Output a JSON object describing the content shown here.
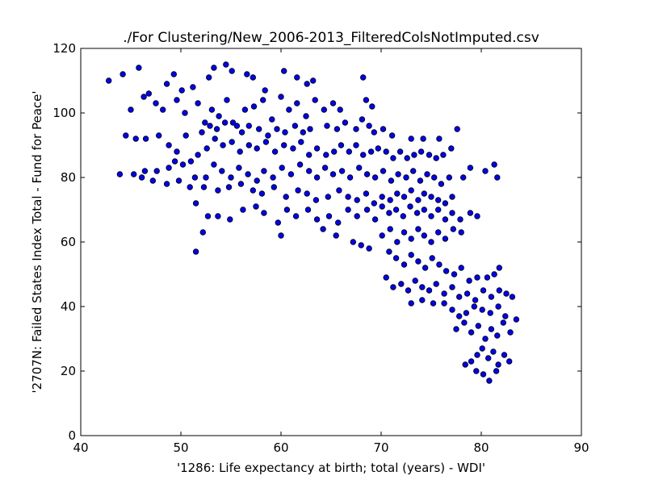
{
  "chart_data": {
    "type": "scatter",
    "title": "./For Clustering/New_2006-2013_FilteredColsNotImputed.csv",
    "xlabel": "'1286: Life expectancy at birth; total  (years) - WDI'",
    "ylabel": "'2707N: Failed States Index Total - Fund for Peace'",
    "xlim": [
      40,
      90
    ],
    "ylim": [
      0,
      120
    ],
    "xticks": [
      40,
      50,
      60,
      70,
      80,
      90
    ],
    "yticks": [
      0,
      20,
      40,
      60,
      80,
      100,
      120
    ],
    "grid": false,
    "marker_color": "#0000ff",
    "marker_edge": "#000000",
    "points": [
      [
        42.8,
        110
      ],
      [
        44.2,
        112
      ],
      [
        45.8,
        114
      ],
      [
        46.3,
        105
      ],
      [
        47.5,
        103
      ],
      [
        48.6,
        109
      ],
      [
        49.3,
        112
      ],
      [
        50.1,
        107
      ],
      [
        51.2,
        108
      ],
      [
        52.8,
        111
      ],
      [
        53.3,
        114
      ],
      [
        54.5,
        115
      ],
      [
        55.1,
        113
      ],
      [
        56.6,
        112
      ],
      [
        57.2,
        111
      ],
      [
        58.4,
        107
      ],
      [
        60.3,
        113
      ],
      [
        61.6,
        111
      ],
      [
        62.6,
        109
      ],
      [
        63.2,
        110
      ],
      [
        68.2,
        111
      ],
      [
        45.0,
        101
      ],
      [
        46.8,
        106
      ],
      [
        48.2,
        101
      ],
      [
        49.6,
        104
      ],
      [
        50.4,
        100
      ],
      [
        51.7,
        103
      ],
      [
        52.4,
        97
      ],
      [
        53.1,
        101
      ],
      [
        53.8,
        99
      ],
      [
        54.6,
        104
      ],
      [
        55.6,
        96
      ],
      [
        56.4,
        101
      ],
      [
        57.3,
        102
      ],
      [
        58.2,
        104
      ],
      [
        59.1,
        98
      ],
      [
        60.0,
        105
      ],
      [
        60.8,
        101
      ],
      [
        61.6,
        103
      ],
      [
        62.5,
        99
      ],
      [
        63.4,
        104
      ],
      [
        64.3,
        101
      ],
      [
        65.2,
        103
      ],
      [
        65.9,
        101
      ],
      [
        68.5,
        104
      ],
      [
        69.1,
        102
      ],
      [
        44.5,
        93
      ],
      [
        45.5,
        92
      ],
      [
        46.5,
        92
      ],
      [
        47.8,
        93
      ],
      [
        48.8,
        90
      ],
      [
        50.5,
        93
      ],
      [
        52.1,
        94
      ],
      [
        52.9,
        96
      ],
      [
        53.6,
        95
      ],
      [
        54.4,
        97
      ],
      [
        55.2,
        97
      ],
      [
        56.1,
        94
      ],
      [
        56.8,
        96
      ],
      [
        57.8,
        95
      ],
      [
        58.7,
        93
      ],
      [
        59.6,
        95
      ],
      [
        60.4,
        94
      ],
      [
        61.4,
        96
      ],
      [
        62.2,
        94
      ],
      [
        62.9,
        95
      ],
      [
        64.6,
        96
      ],
      [
        65.6,
        95
      ],
      [
        66.4,
        97
      ],
      [
        67.5,
        95
      ],
      [
        68.1,
        98
      ],
      [
        68.8,
        96
      ],
      [
        69.3,
        94
      ],
      [
        70.2,
        95
      ],
      [
        71.1,
        93
      ],
      [
        73.0,
        92
      ],
      [
        74.2,
        92
      ],
      [
        75.8,
        92
      ],
      [
        77.6,
        95
      ],
      [
        49.6,
        88
      ],
      [
        51.0,
        85
      ],
      [
        51.7,
        87
      ],
      [
        52.6,
        89
      ],
      [
        53.4,
        92
      ],
      [
        54.2,
        90
      ],
      [
        55.1,
        91
      ],
      [
        55.9,
        88
      ],
      [
        56.8,
        90
      ],
      [
        57.6,
        89
      ],
      [
        58.5,
        91
      ],
      [
        59.4,
        88
      ],
      [
        60.3,
        90
      ],
      [
        61.2,
        89
      ],
      [
        62.0,
        91
      ],
      [
        62.8,
        87
      ],
      [
        63.6,
        89
      ],
      [
        64.5,
        87
      ],
      [
        65.3,
        88
      ],
      [
        66.0,
        90
      ],
      [
        66.8,
        88
      ],
      [
        67.5,
        90
      ],
      [
        68.2,
        87
      ],
      [
        69.0,
        88
      ],
      [
        69.7,
        89
      ],
      [
        70.5,
        88
      ],
      [
        71.2,
        86
      ],
      [
        71.9,
        88
      ],
      [
        72.6,
        86
      ],
      [
        73.3,
        87
      ],
      [
        74.0,
        88
      ],
      [
        74.8,
        87
      ],
      [
        75.5,
        86
      ],
      [
        76.2,
        87
      ],
      [
        77.0,
        89
      ],
      [
        43.9,
        81
      ],
      [
        45.3,
        81
      ],
      [
        46.4,
        82
      ],
      [
        47.6,
        82
      ],
      [
        48.8,
        83
      ],
      [
        49.4,
        85
      ],
      [
        50.2,
        84
      ],
      [
        51.4,
        80
      ],
      [
        52.5,
        80
      ],
      [
        53.3,
        84
      ],
      [
        54.1,
        82
      ],
      [
        55.0,
        80
      ],
      [
        55.8,
        83
      ],
      [
        56.7,
        81
      ],
      [
        57.6,
        79
      ],
      [
        58.3,
        82
      ],
      [
        59.2,
        80
      ],
      [
        60.1,
        83
      ],
      [
        61.0,
        81
      ],
      [
        61.9,
        84
      ],
      [
        62.8,
        82
      ],
      [
        63.6,
        80
      ],
      [
        64.4,
        83
      ],
      [
        65.2,
        81
      ],
      [
        66.1,
        82
      ],
      [
        66.9,
        80
      ],
      [
        67.8,
        83
      ],
      [
        68.6,
        81
      ],
      [
        69.4,
        80
      ],
      [
        70.2,
        82
      ],
      [
        71.0,
        79
      ],
      [
        71.7,
        81
      ],
      [
        72.5,
        80
      ],
      [
        73.2,
        82
      ],
      [
        73.9,
        79
      ],
      [
        74.6,
        81
      ],
      [
        75.3,
        80
      ],
      [
        76.0,
        78
      ],
      [
        76.8,
        80
      ],
      [
        78.2,
        80
      ],
      [
        78.9,
        83
      ],
      [
        80.4,
        82
      ],
      [
        81.3,
        84
      ],
      [
        81.6,
        80
      ],
      [
        46.1,
        80
      ],
      [
        47.2,
        79
      ],
      [
        48.6,
        78
      ],
      [
        49.8,
        79
      ],
      [
        50.9,
        77
      ],
      [
        52.3,
        77
      ],
      [
        53.7,
        76
      ],
      [
        54.8,
        77
      ],
      [
        56.0,
        78
      ],
      [
        57.2,
        76
      ],
      [
        58.1,
        75
      ],
      [
        59.3,
        77
      ],
      [
        60.5,
        74
      ],
      [
        61.7,
        76
      ],
      [
        62.6,
        75
      ],
      [
        63.5,
        73
      ],
      [
        64.7,
        74
      ],
      [
        65.8,
        76
      ],
      [
        66.7,
        74
      ],
      [
        67.6,
        73
      ],
      [
        68.5,
        75
      ],
      [
        69.3,
        72
      ],
      [
        70.1,
        74
      ],
      [
        70.9,
        73
      ],
      [
        71.6,
        75
      ],
      [
        72.3,
        74
      ],
      [
        73.0,
        76
      ],
      [
        73.7,
        73
      ],
      [
        74.3,
        75
      ],
      [
        75.0,
        74
      ],
      [
        75.7,
        73
      ],
      [
        76.4,
        72
      ],
      [
        77.1,
        74
      ],
      [
        51.5,
        72
      ],
      [
        52.7,
        68
      ],
      [
        53.7,
        68
      ],
      [
        54.9,
        67
      ],
      [
        56.2,
        70
      ],
      [
        57.5,
        71
      ],
      [
        58.3,
        69
      ],
      [
        59.7,
        66
      ],
      [
        60.6,
        70
      ],
      [
        61.5,
        68
      ],
      [
        62.7,
        70
      ],
      [
        63.6,
        67
      ],
      [
        64.8,
        68
      ],
      [
        65.7,
        66
      ],
      [
        66.7,
        70
      ],
      [
        67.6,
        68
      ],
      [
        68.6,
        70
      ],
      [
        69.4,
        67
      ],
      [
        70.1,
        71
      ],
      [
        70.8,
        69
      ],
      [
        71.5,
        70
      ],
      [
        72.2,
        68
      ],
      [
        72.9,
        71
      ],
      [
        73.6,
        69
      ],
      [
        74.3,
        70
      ],
      [
        75.0,
        68
      ],
      [
        75.7,
        70
      ],
      [
        76.4,
        67
      ],
      [
        77.1,
        69
      ],
      [
        77.9,
        67
      ],
      [
        78.9,
        69
      ],
      [
        79.6,
        68
      ],
      [
        51.5,
        57
      ],
      [
        52.2,
        63
      ],
      [
        60.0,
        62
      ],
      [
        64.2,
        64
      ],
      [
        65.5,
        62
      ],
      [
        67.2,
        60
      ],
      [
        68.0,
        59
      ],
      [
        68.8,
        58
      ],
      [
        70.1,
        62
      ],
      [
        70.9,
        64
      ],
      [
        71.6,
        60
      ],
      [
        72.3,
        63
      ],
      [
        73.0,
        61
      ],
      [
        73.7,
        64
      ],
      [
        74.3,
        62
      ],
      [
        75.0,
        60
      ],
      [
        75.7,
        63
      ],
      [
        76.4,
        61
      ],
      [
        77.2,
        64
      ],
      [
        78.0,
        63
      ],
      [
        70.8,
        57
      ],
      [
        71.5,
        55
      ],
      [
        72.3,
        53
      ],
      [
        73.0,
        56
      ],
      [
        73.7,
        54
      ],
      [
        74.4,
        52
      ],
      [
        75.1,
        55
      ],
      [
        75.8,
        53
      ],
      [
        76.5,
        51
      ],
      [
        77.3,
        50
      ],
      [
        78.0,
        52
      ],
      [
        78.8,
        48
      ],
      [
        79.6,
        49
      ],
      [
        80.6,
        49
      ],
      [
        81.3,
        50
      ],
      [
        81.8,
        52
      ],
      [
        70.5,
        49
      ],
      [
        71.2,
        46
      ],
      [
        72.0,
        47
      ],
      [
        72.7,
        45
      ],
      [
        73.4,
        48
      ],
      [
        74.1,
        46
      ],
      [
        74.8,
        45
      ],
      [
        75.5,
        47
      ],
      [
        76.3,
        44
      ],
      [
        77.1,
        46
      ],
      [
        77.8,
        43
      ],
      [
        78.6,
        44
      ],
      [
        79.4,
        42
      ],
      [
        80.2,
        45
      ],
      [
        81.0,
        43
      ],
      [
        81.8,
        45
      ],
      [
        82.5,
        44
      ],
      [
        83.1,
        43
      ],
      [
        73.0,
        41
      ],
      [
        74.1,
        42
      ],
      [
        75.2,
        41
      ],
      [
        76.3,
        41
      ],
      [
        77.1,
        39
      ],
      [
        77.8,
        37
      ],
      [
        78.5,
        38
      ],
      [
        79.3,
        40
      ],
      [
        80.1,
        39
      ],
      [
        80.9,
        38
      ],
      [
        81.7,
        40
      ],
      [
        82.4,
        37
      ],
      [
        77.5,
        33
      ],
      [
        78.3,
        35
      ],
      [
        79.0,
        32
      ],
      [
        79.7,
        34
      ],
      [
        80.4,
        30
      ],
      [
        81.0,
        33
      ],
      [
        81.6,
        31
      ],
      [
        82.2,
        35
      ],
      [
        82.9,
        32
      ],
      [
        83.5,
        36
      ],
      [
        78.4,
        22
      ],
      [
        79.0,
        23
      ],
      [
        79.6,
        25
      ],
      [
        80.1,
        27
      ],
      [
        80.7,
        24
      ],
      [
        81.2,
        26
      ],
      [
        81.7,
        22
      ],
      [
        82.3,
        25
      ],
      [
        82.8,
        23
      ],
      [
        80.2,
        19
      ],
      [
        80.8,
        17
      ],
      [
        81.5,
        20
      ],
      [
        79.5,
        20
      ]
    ]
  }
}
